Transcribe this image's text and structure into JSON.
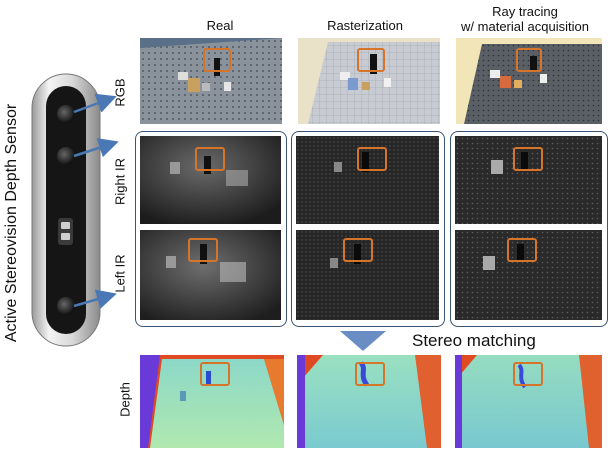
{
  "columns": {
    "real": "Real",
    "rasterization": "Rasterization",
    "raytracing_line1": "Ray tracing",
    "raytracing_line2": "w/ material acquisition"
  },
  "rows": {
    "rgb": "RGB",
    "right_ir": "Right IR",
    "left_ir": "Left IR",
    "depth": "Depth"
  },
  "sensor_label": "Active Stereovision Depth Sensor",
  "stereo_label": "Stereo matching",
  "colors": {
    "group_border": "#3a5578",
    "arrow": "#4a78b4",
    "roi_box": "#d6752a"
  }
}
